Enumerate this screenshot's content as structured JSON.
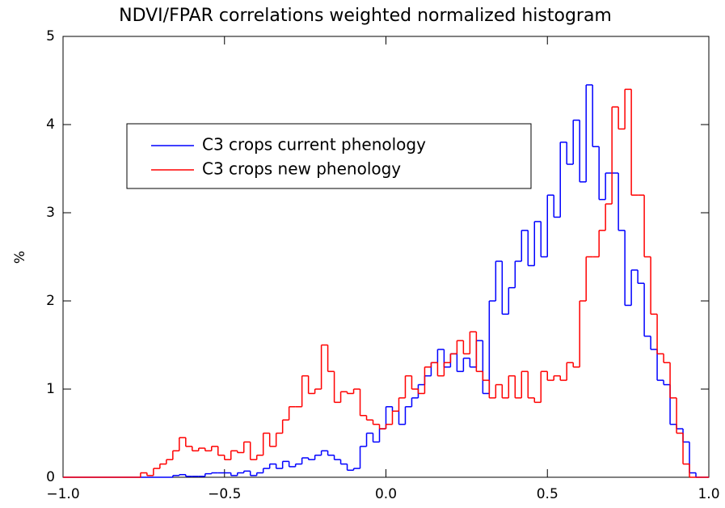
{
  "chart_data": {
    "type": "histogram",
    "title": "NDVI/FPAR correlations weighted normalized histogram",
    "ylabel": "%",
    "legend": "upper-left",
    "bins": [
      -1.0,
      -0.98,
      -0.96,
      -0.94,
      -0.92,
      -0.9,
      -0.88,
      -0.86,
      -0.84,
      -0.82,
      -0.8,
      -0.78,
      -0.76,
      -0.74,
      -0.72,
      -0.7,
      -0.68,
      -0.66,
      -0.64,
      -0.62,
      -0.6,
      -0.58,
      -0.56,
      -0.54,
      -0.52,
      -0.5,
      -0.48,
      -0.46,
      -0.44,
      -0.42,
      -0.4,
      -0.38,
      -0.36,
      -0.34,
      -0.32,
      -0.3,
      -0.28,
      -0.26,
      -0.24,
      -0.22,
      -0.2,
      -0.18,
      -0.16,
      -0.14,
      -0.12,
      -0.1,
      -0.08,
      -0.06,
      -0.04,
      -0.02,
      0.0,
      0.02,
      0.04,
      0.06,
      0.08,
      0.1,
      0.12,
      0.14,
      0.16,
      0.18,
      0.2,
      0.22,
      0.24,
      0.26,
      0.28,
      0.3,
      0.32,
      0.34,
      0.36,
      0.38,
      0.4,
      0.42,
      0.44,
      0.46,
      0.48,
      0.5,
      0.52,
      0.54,
      0.56,
      0.58,
      0.6,
      0.62,
      0.64,
      0.66,
      0.68,
      0.7,
      0.72,
      0.74,
      0.76,
      0.78,
      0.8,
      0.82,
      0.84,
      0.86,
      0.88,
      0.9,
      0.92,
      0.94,
      0.96,
      0.98,
      1.0
    ],
    "series": [
      {
        "name": "C3 crops current phenology",
        "color": "#0000ff",
        "values": [
          0,
          0,
          0,
          0,
          0,
          0,
          0,
          0,
          0,
          0,
          0,
          0,
          0,
          0,
          0,
          0,
          0,
          0.02,
          0.03,
          0.01,
          0.01,
          0.01,
          0.04,
          0.05,
          0.05,
          0.05,
          0.02,
          0.05,
          0.07,
          0.02,
          0.05,
          0.1,
          0.15,
          0.1,
          0.18,
          0.12,
          0.15,
          0.22,
          0.2,
          0.25,
          0.3,
          0.25,
          0.2,
          0.15,
          0.08,
          0.1,
          0.35,
          0.5,
          0.4,
          0.55,
          0.8,
          0.75,
          0.6,
          0.8,
          0.9,
          1.05,
          1.15,
          1.3,
          1.45,
          1.25,
          1.4,
          1.2,
          1.35,
          1.25,
          1.55,
          0.95,
          2.0,
          2.45,
          1.85,
          2.15,
          2.45,
          2.8,
          2.4,
          2.9,
          2.5,
          3.2,
          2.95,
          3.8,
          3.55,
          4.05,
          3.35,
          4.45,
          3.75,
          3.15,
          3.45,
          3.45,
          2.8,
          1.95,
          2.35,
          2.2,
          1.6,
          1.45,
          1.1,
          1.05,
          0.6,
          0.55,
          0.4,
          0.05,
          0,
          0
        ]
      },
      {
        "name": "C3 crops new phenology",
        "color": "#ff0000",
        "values": [
          0,
          0,
          0,
          0,
          0,
          0,
          0,
          0,
          0,
          0,
          0,
          0,
          0.05,
          0.02,
          0.1,
          0.15,
          0.2,
          0.3,
          0.45,
          0.35,
          0.3,
          0.33,
          0.3,
          0.35,
          0.25,
          0.2,
          0.3,
          0.28,
          0.4,
          0.2,
          0.25,
          0.5,
          0.35,
          0.5,
          0.65,
          0.8,
          0.8,
          1.15,
          0.95,
          1.0,
          1.5,
          1.2,
          0.85,
          0.97,
          0.95,
          1.0,
          0.7,
          0.65,
          0.6,
          0.55,
          0.6,
          0.75,
          0.9,
          1.15,
          1.0,
          0.95,
          1.25,
          1.3,
          1.15,
          1.3,
          1.4,
          1.55,
          1.4,
          1.65,
          1.2,
          1.1,
          0.9,
          1.05,
          0.9,
          1.15,
          0.9,
          1.2,
          0.9,
          0.85,
          1.2,
          1.1,
          1.15,
          1.1,
          1.3,
          1.25,
          2.0,
          2.5,
          2.5,
          2.8,
          3.1,
          4.2,
          3.95,
          4.4,
          3.2,
          3.2,
          2.5,
          1.85,
          1.4,
          1.3,
          0.9,
          0.5,
          0.15,
          0,
          0,
          0
        ]
      }
    ],
    "xlim": [
      -1.0,
      1.0
    ],
    "xticks": [
      {
        "value": -1.0,
        "label": "−1.0"
      },
      {
        "value": -0.5,
        "label": "−0.5"
      },
      {
        "value": 0.0,
        "label": "0.0"
      },
      {
        "value": 0.5,
        "label": "0.5"
      },
      {
        "value": 1.0,
        "label": "1.0"
      }
    ],
    "ylim": [
      0,
      5
    ],
    "yticks": [
      0,
      1,
      2,
      3,
      4,
      5
    ]
  }
}
